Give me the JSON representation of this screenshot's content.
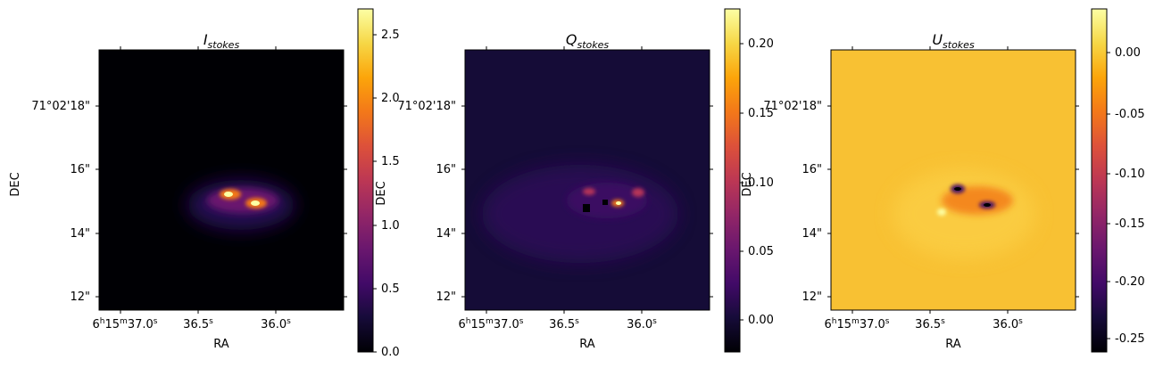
{
  "chart_data": [
    {
      "type": "heatmap",
      "title": "I",
      "title_subscript": "stokes",
      "xlabel": "RA",
      "ylabel": "DEC",
      "x_ticks": [
        "6h15m37.0s",
        "36.5s",
        "36.0s"
      ],
      "x_tick_labels": [
        {
          "main": "6",
          "sup": "h"
        },
        {
          "main": "15",
          "sup": "m"
        },
        {
          "main": "37.0",
          "sup": "s"
        }
      ],
      "x_tick_labels_2": [
        {
          "main": "36.5",
          "sup": "s"
        }
      ],
      "x_tick_labels_3": [
        {
          "main": "36.0",
          "sup": "s"
        }
      ],
      "y_ticks": [
        "71°02'18\"",
        "16\"",
        "14\"",
        "12\""
      ],
      "colormap": "inferno",
      "colorbar": {
        "range": [
          0.0,
          2.7
        ],
        "ticks": [
          "0.0",
          "0.5",
          "1.0",
          "1.5",
          "2.0",
          "2.5"
        ]
      }
    },
    {
      "type": "heatmap",
      "title": "Q",
      "title_subscript": "stokes",
      "xlabel": "RA",
      "ylabel": "DEC",
      "x_ticks": [
        "6h15m37.0s",
        "36.5s",
        "36.0s"
      ],
      "y_ticks": [
        "71°02'18\"",
        "16\"",
        "14\"",
        "12\""
      ],
      "colormap": "inferno",
      "colorbar": {
        "range": [
          -0.023,
          0.224
        ],
        "ticks": [
          "0.00",
          "0.05",
          "0.10",
          "0.15",
          "0.20"
        ]
      }
    },
    {
      "type": "heatmap",
      "title": "U",
      "title_subscript": "stokes",
      "xlabel": "RA",
      "ylabel": "DEC",
      "x_ticks": [
        "6h15m37.0s",
        "36.5s",
        "36.0s"
      ],
      "y_ticks": [
        "71°02'18\"",
        "16\"",
        "14\"",
        "12\""
      ],
      "colormap": "inferno",
      "colorbar": {
        "range": [
          -0.262,
          0.039
        ],
        "ticks": [
          "0.00",
          "-0.05",
          "-0.10",
          "-0.15",
          "-0.20",
          "-0.25"
        ]
      }
    }
  ],
  "colors": {
    "background": "#ffffff",
    "axis": "#000000",
    "q_background": "#150c37",
    "u_background": "#f8c133"
  }
}
